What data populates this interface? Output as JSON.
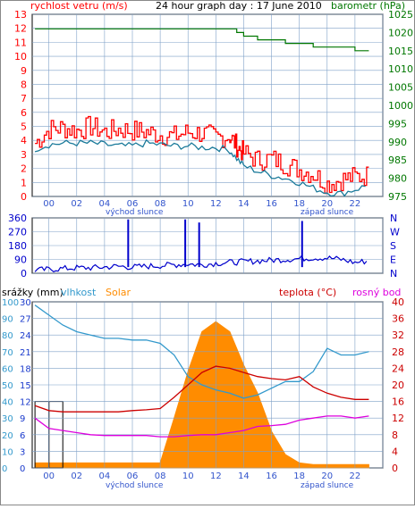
{
  "title": "24 hour graph day : 17 June 2010",
  "colors": {
    "wind": "#ff0000",
    "gust": "#dd0000",
    "wind_avg": "#1a7a9a",
    "pressure": "#007700",
    "direction": "#0000cc",
    "rain": "#1a3acc",
    "humidity": "#3399cc",
    "solar": "#ff8c00",
    "temperature": "#cc0000",
    "dewpoint": "#dd00dd",
    "text_blue": "#3355cc",
    "grid": "#7fa0c8"
  },
  "hour_labels": [
    "00",
    "02",
    "04",
    "06",
    "08",
    "10",
    "12",
    "14",
    "16",
    "18",
    "20",
    "22"
  ],
  "sunrise_label": "východ slunce",
  "sunset_label": "západ slunce",
  "chart_data": [
    {
      "type": "line",
      "id": "wind_pressure",
      "left_axis_label": "rychlost vetru (m/s)",
      "right_axis_label": "barometr (hPa)",
      "ylim_left": [
        0,
        13
      ],
      "ylim_right": [
        975,
        1025
      ],
      "left_ticks": [
        0,
        1,
        2,
        3,
        4,
        5,
        6,
        7,
        8,
        9,
        10,
        11,
        12,
        13
      ],
      "right_ticks": [
        975,
        980,
        985,
        990,
        995,
        1000,
        1005,
        1010,
        1015,
        1020,
        1025
      ],
      "x_hours": [
        -1,
        0,
        1,
        2,
        3,
        4,
        5,
        6,
        7,
        8,
        9,
        10,
        11,
        12,
        13,
        13.5,
        14,
        15,
        16,
        17,
        18,
        19,
        20,
        21,
        22,
        23
      ],
      "series": [
        {
          "key": "gust",
          "values": [
            3.8,
            4.8,
            4.9,
            4.7,
            5.0,
            4.6,
            4.8,
            4.7,
            4.6,
            4.4,
            4.3,
            4.6,
            4.5,
            4.2,
            4.3,
            3.6,
            3.1,
            2.6,
            2.7,
            2.3,
            1.9,
            1.6,
            0.9,
            1.2,
            1.4,
            1.5
          ]
        },
        {
          "key": "wind_avg",
          "values": [
            3.4,
            3.7,
            3.8,
            3.8,
            3.8,
            3.7,
            3.6,
            3.6,
            3.8,
            3.7,
            3.6,
            3.6,
            3.5,
            3.5,
            3.3,
            2.7,
            2.2,
            1.8,
            1.5,
            1.3,
            1.0,
            0.6,
            0.3,
            0.2,
            0.5,
            0.8
          ]
        },
        {
          "key": "pressure",
          "values": [
            1021,
            1021,
            1021,
            1021,
            1021,
            1021,
            1021,
            1021,
            1021,
            1021,
            1021,
            1021,
            1021,
            1021,
            1021,
            1020,
            1019,
            1018,
            1018,
            1017,
            1017,
            1016,
            1016,
            1016,
            1015,
            1015
          ]
        }
      ]
    },
    {
      "type": "line",
      "id": "wind_direction",
      "left_ticks": [
        0,
        90,
        180,
        270,
        360
      ],
      "right_labels": [
        "N",
        "W",
        "S",
        "E",
        "N"
      ],
      "ylim": [
        0,
        360
      ],
      "x_hours": [
        -1,
        0,
        1,
        2,
        3,
        4,
        5,
        6,
        7,
        8,
        9,
        10,
        11,
        12,
        13,
        14,
        15,
        16,
        17,
        18,
        19,
        20,
        21,
        22,
        23
      ],
      "values": [
        20,
        25,
        30,
        35,
        35,
        40,
        45,
        40,
        45,
        50,
        55,
        60,
        55,
        65,
        70,
        75,
        80,
        85,
        90,
        95,
        100,
        100,
        90,
        70,
        80
      ],
      "spikes": [
        {
          "x": 5.7,
          "value": 350
        },
        {
          "x": 9.8,
          "value": 350
        },
        {
          "x": 10.8,
          "value": 330
        },
        {
          "x": 18.2,
          "value": 340
        }
      ]
    },
    {
      "type": "area",
      "id": "rain_humidity_solar_temp",
      "labels": {
        "rain": "srážky (mm)",
        "humidity": "vlhkost",
        "solar": "Solar",
        "temperature": "teplota (°C)",
        "dewpoint": "rosný bod"
      },
      "humidity_ticks": [
        0,
        10,
        20,
        30,
        40,
        50,
        60,
        70,
        80,
        90,
        100
      ],
      "rain_ticks": [
        0,
        3,
        6,
        9,
        12,
        15,
        18,
        21,
        24,
        27,
        30
      ],
      "temp_ticks": [
        0,
        4,
        8,
        12,
        16,
        20,
        24,
        28,
        32,
        36,
        40
      ],
      "ylim_humidity": [
        0,
        100
      ],
      "ylim_temp": [
        0,
        40
      ],
      "x_hours": [
        -1,
        0,
        1,
        2,
        3,
        4,
        5,
        6,
        7,
        8,
        9,
        10,
        11,
        12,
        13,
        14,
        15,
        16,
        17,
        18,
        19,
        20,
        21,
        22,
        23
      ],
      "humidity": [
        98,
        92,
        86,
        82,
        80,
        78,
        78,
        77,
        77,
        75,
        68,
        55,
        50,
        47,
        45,
        42,
        44,
        48,
        52,
        52,
        58,
        72,
        68,
        68,
        70
      ],
      "temperature": [
        15,
        13.8,
        13.5,
        13.5,
        13.5,
        13.5,
        13.5,
        13.8,
        14.0,
        14.3,
        17,
        20,
        23,
        24.5,
        24,
        23,
        22,
        21.5,
        21.2,
        22,
        19.5,
        18,
        17,
        16.5,
        16.5
      ],
      "dewpoint": [
        12,
        9.5,
        9,
        8.5,
        8,
        7.8,
        7.8,
        7.8,
        7.8,
        7.5,
        7.5,
        7.8,
        8,
        8,
        8.5,
        9,
        10,
        10.2,
        10.5,
        11.5,
        12,
        12.5,
        12.5,
        12,
        12.5
      ],
      "rain": [
        12,
        12,
        0,
        0,
        0,
        0,
        0,
        0,
        0,
        0,
        0,
        0,
        0,
        0,
        0,
        0,
        0,
        0,
        0,
        0,
        0,
        0,
        0,
        0,
        0
      ],
      "solar_percent": [
        3,
        3,
        3,
        3,
        3,
        3,
        3,
        3,
        3,
        3,
        30,
        58,
        82,
        88,
        82,
        62,
        45,
        22,
        8,
        3,
        2,
        2,
        2,
        2,
        2
      ]
    }
  ]
}
